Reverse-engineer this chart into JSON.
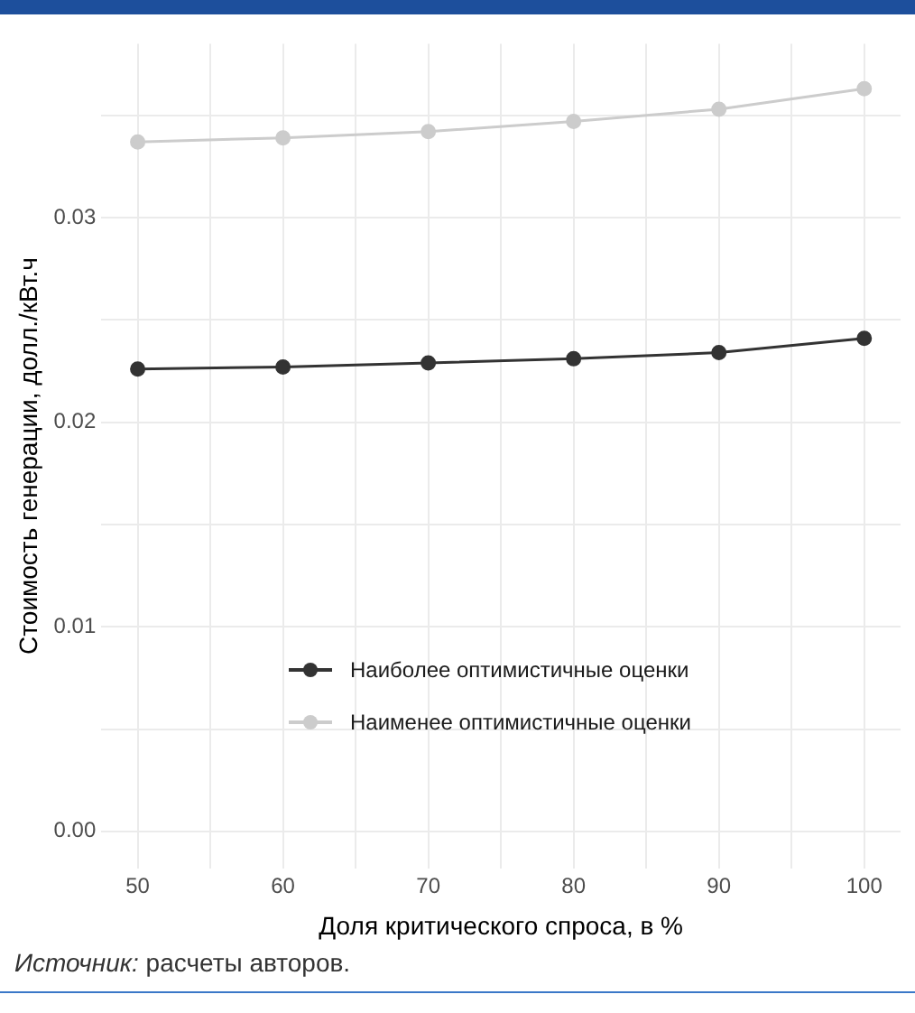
{
  "chart_data": {
    "type": "line",
    "xlabel": "Доля критического спроса, в %",
    "ylabel": "Стоимость генерации, долл./кВт.ч",
    "annotations": [
      "Источник: расчеты авторов."
    ],
    "x": [
      50,
      60,
      70,
      80,
      90,
      100
    ],
    "series": [
      {
        "name": "Наиболее оптимистичные оценки",
        "color": "#333333",
        "values": [
          0.0226,
          0.0227,
          0.0229,
          0.0231,
          0.0234,
          0.0241
        ]
      },
      {
        "name": "Наименее оптимистичные оценки",
        "color": "#cccccc",
        "values": [
          0.0337,
          0.0339,
          0.0342,
          0.0347,
          0.0353,
          0.0363
        ]
      }
    ],
    "xlim": [
      47.5,
      102.5
    ],
    "xticks": [
      50,
      {
        "value": 55,
        "label": null
      },
      60,
      {
        "value": 65,
        "label": null
      },
      70,
      {
        "value": 75,
        "label": null
      },
      80,
      {
        "value": 85,
        "label": null
      },
      90,
      {
        "value": 95,
        "label": null
      },
      100
    ],
    "ylim": [
      -0.0018,
      0.0385
    ],
    "yticks": [
      "0.00",
      {
        "value": 0.005,
        "label": null
      },
      {
        "value": 0.01,
        "label": "0.01"
      },
      {
        "value": 0.015,
        "label": null
      },
      {
        "value": 0.02,
        "label": "0.02"
      },
      {
        "value": 0.025,
        "label": null
      },
      {
        "value": 0.03,
        "label": "0.03"
      },
      {
        "value": 0.035,
        "label": null
      }
    ],
    "grid": true,
    "legend": "bottom",
    "marker": "circle",
    "line_style": "solid"
  }
}
